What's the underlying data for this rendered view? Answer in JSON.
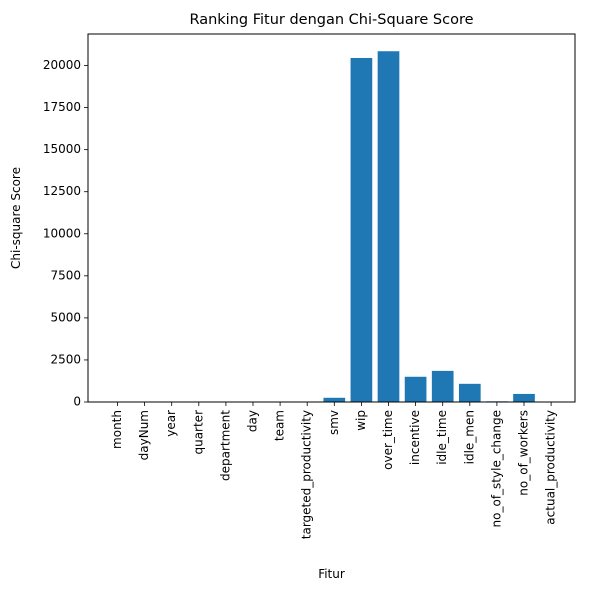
{
  "chart_data": {
    "type": "bar",
    "title": "Ranking Fitur dengan Chi-Square Score",
    "xlabel": "Fitur",
    "ylabel": "Chi-square Score",
    "ylim": [
      0,
      21875
    ],
    "yticks": [
      0,
      2500,
      5000,
      7500,
      10000,
      12500,
      15000,
      17500,
      20000
    ],
    "grid": false,
    "bar_color": "#1f77b4",
    "categories": [
      "month",
      "dayNum",
      "year",
      "quarter",
      "department",
      "day",
      "team",
      "targeted_productivity",
      "smv",
      "wip",
      "over_time",
      "incentive",
      "idle_time",
      "idle_men",
      "no_of_style_change",
      "no_of_workers",
      "actual_productivity"
    ],
    "values": [
      2,
      2,
      0,
      1,
      3,
      2,
      10,
      0,
      250,
      20450,
      20850,
      1500,
      1850,
      1080,
      40,
      480,
      1
    ]
  }
}
